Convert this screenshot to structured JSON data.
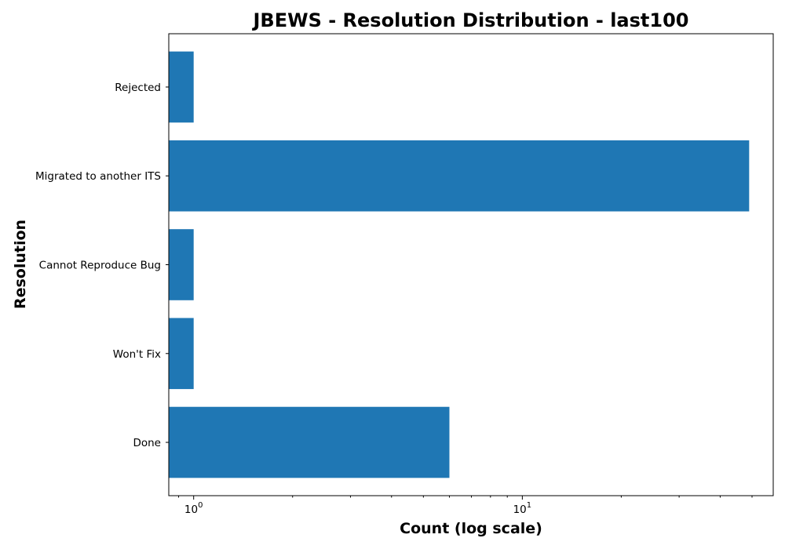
{
  "chart_data": {
    "type": "bar",
    "orientation": "horizontal",
    "title": "JBEWS - Resolution Distribution - last100",
    "xlabel": "Count (log scale)",
    "ylabel": "Resolution",
    "xscale": "log",
    "xlim": [
      0.84,
      58
    ],
    "x_ticks": [
      {
        "base": "10",
        "exp": "0",
        "value": 1
      },
      {
        "base": "10",
        "exp": "1",
        "value": 10
      }
    ],
    "categories": [
      "Done",
      "Won't Fix",
      "Cannot Reproduce Bug",
      "Migrated to another ITS",
      "Rejected"
    ],
    "values": [
      6,
      1,
      1,
      49,
      1
    ],
    "bar_color": "#1f77b4",
    "grid": false,
    "legend": "none"
  }
}
